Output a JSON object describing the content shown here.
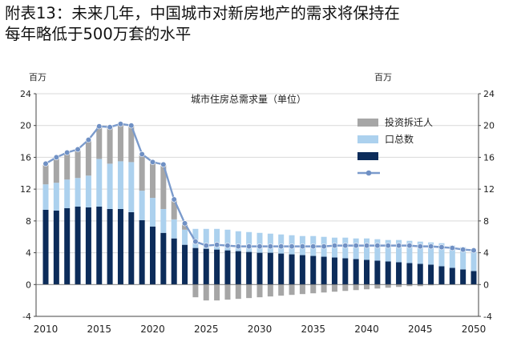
{
  "page_title": {
    "line1": "附表13：未来几年，中国城市对新房地产的需求将保持在",
    "line2": "每年略低于500万套的水平"
  },
  "colors": {
    "demolition": "#a6a6a6",
    "population": "#acd1ee",
    "dark_bar": "#0c2c5a",
    "line": "#7b9bcc",
    "line_marker": "#6f90c4",
    "grid": "#d9d9d9"
  },
  "chart_data": {
    "type": "bar",
    "title": "城市住房总需求量（单位）",
    "left_unit": "百万",
    "right_unit": "百万",
    "ylim": [
      -4,
      24
    ],
    "yticks": [
      "-4",
      "0",
      "4",
      "8",
      "12",
      "16",
      "20",
      "24"
    ],
    "x_tick_labels": [
      "2010",
      "2015",
      "2020",
      "2025",
      "2030",
      "2035",
      "2040",
      "2045",
      "2050"
    ],
    "x": [
      2010,
      2011,
      2012,
      2013,
      2014,
      2015,
      2016,
      2017,
      2018,
      2019,
      2020,
      2021,
      2022,
      2023,
      2024,
      2025,
      2026,
      2027,
      2028,
      2029,
      2030,
      2031,
      2032,
      2033,
      2034,
      2035,
      2036,
      2037,
      2038,
      2039,
      2040,
      2041,
      2042,
      2043,
      2044,
      2045,
      2046,
      2047,
      2048,
      2049,
      2050
    ],
    "grid": true,
    "legend_position": "top-right",
    "legend": [
      {
        "key": "demolition",
        "label": "投资拆迁人"
      },
      {
        "key": "population",
        "label": "口总数"
      },
      {
        "key": "dark_bar",
        "label": ""
      },
      {
        "key": "line",
        "label": ""
      }
    ],
    "series": [
      {
        "key": "dark_bar",
        "values": [
          9.4,
          9.3,
          9.6,
          9.8,
          9.7,
          9.8,
          9.5,
          9.5,
          9.1,
          8.1,
          7.3,
          6.5,
          5.8,
          5.0,
          4.6,
          4.5,
          4.4,
          4.3,
          4.2,
          4.1,
          4.0,
          4.0,
          3.9,
          3.8,
          3.7,
          3.6,
          3.5,
          3.4,
          3.3,
          3.2,
          3.1,
          3.0,
          2.9,
          2.8,
          2.7,
          2.6,
          2.5,
          2.3,
          2.1,
          1.9,
          1.7
        ]
      },
      {
        "key": "population",
        "values": [
          3.2,
          3.5,
          3.6,
          3.6,
          4.0,
          6.0,
          5.7,
          6.0,
          6.3,
          3.7,
          3.6,
          3.0,
          2.4,
          1.9,
          2.4,
          2.5,
          2.6,
          2.6,
          2.5,
          2.5,
          2.5,
          2.4,
          2.4,
          2.4,
          2.4,
          2.5,
          2.5,
          2.5,
          2.6,
          2.6,
          2.7,
          2.7,
          2.7,
          2.8,
          2.8,
          2.8,
          2.8,
          2.9,
          2.8,
          2.8,
          2.7
        ]
      },
      {
        "key": "demolition",
        "values": [
          2.6,
          3.2,
          3.4,
          3.6,
          4.5,
          4.1,
          4.6,
          4.7,
          4.6,
          4.6,
          4.5,
          5.6,
          2.5,
          0.8,
          -1.6,
          -2.0,
          -2.0,
          -1.9,
          -1.8,
          -1.7,
          -1.6,
          -1.5,
          -1.4,
          -1.3,
          -1.2,
          -1.1,
          -1.0,
          -0.9,
          -0.8,
          -0.7,
          -0.6,
          -0.5,
          -0.4,
          -0.3,
          -0.2,
          -0.2,
          -0.1,
          0,
          0,
          0,
          0
        ]
      },
      {
        "key": "line",
        "values": [
          15.2,
          16.0,
          16.6,
          17.0,
          18.2,
          19.9,
          19.8,
          20.2,
          20.0,
          16.4,
          15.4,
          15.1,
          10.7,
          7.7,
          5.4,
          4.9,
          5.0,
          4.9,
          4.8,
          4.8,
          4.8,
          4.8,
          4.8,
          4.8,
          4.8,
          4.8,
          4.8,
          4.9,
          4.9,
          4.9,
          4.9,
          4.9,
          4.9,
          4.9,
          4.9,
          4.8,
          4.8,
          4.7,
          4.6,
          4.4,
          4.3
        ]
      }
    ]
  }
}
